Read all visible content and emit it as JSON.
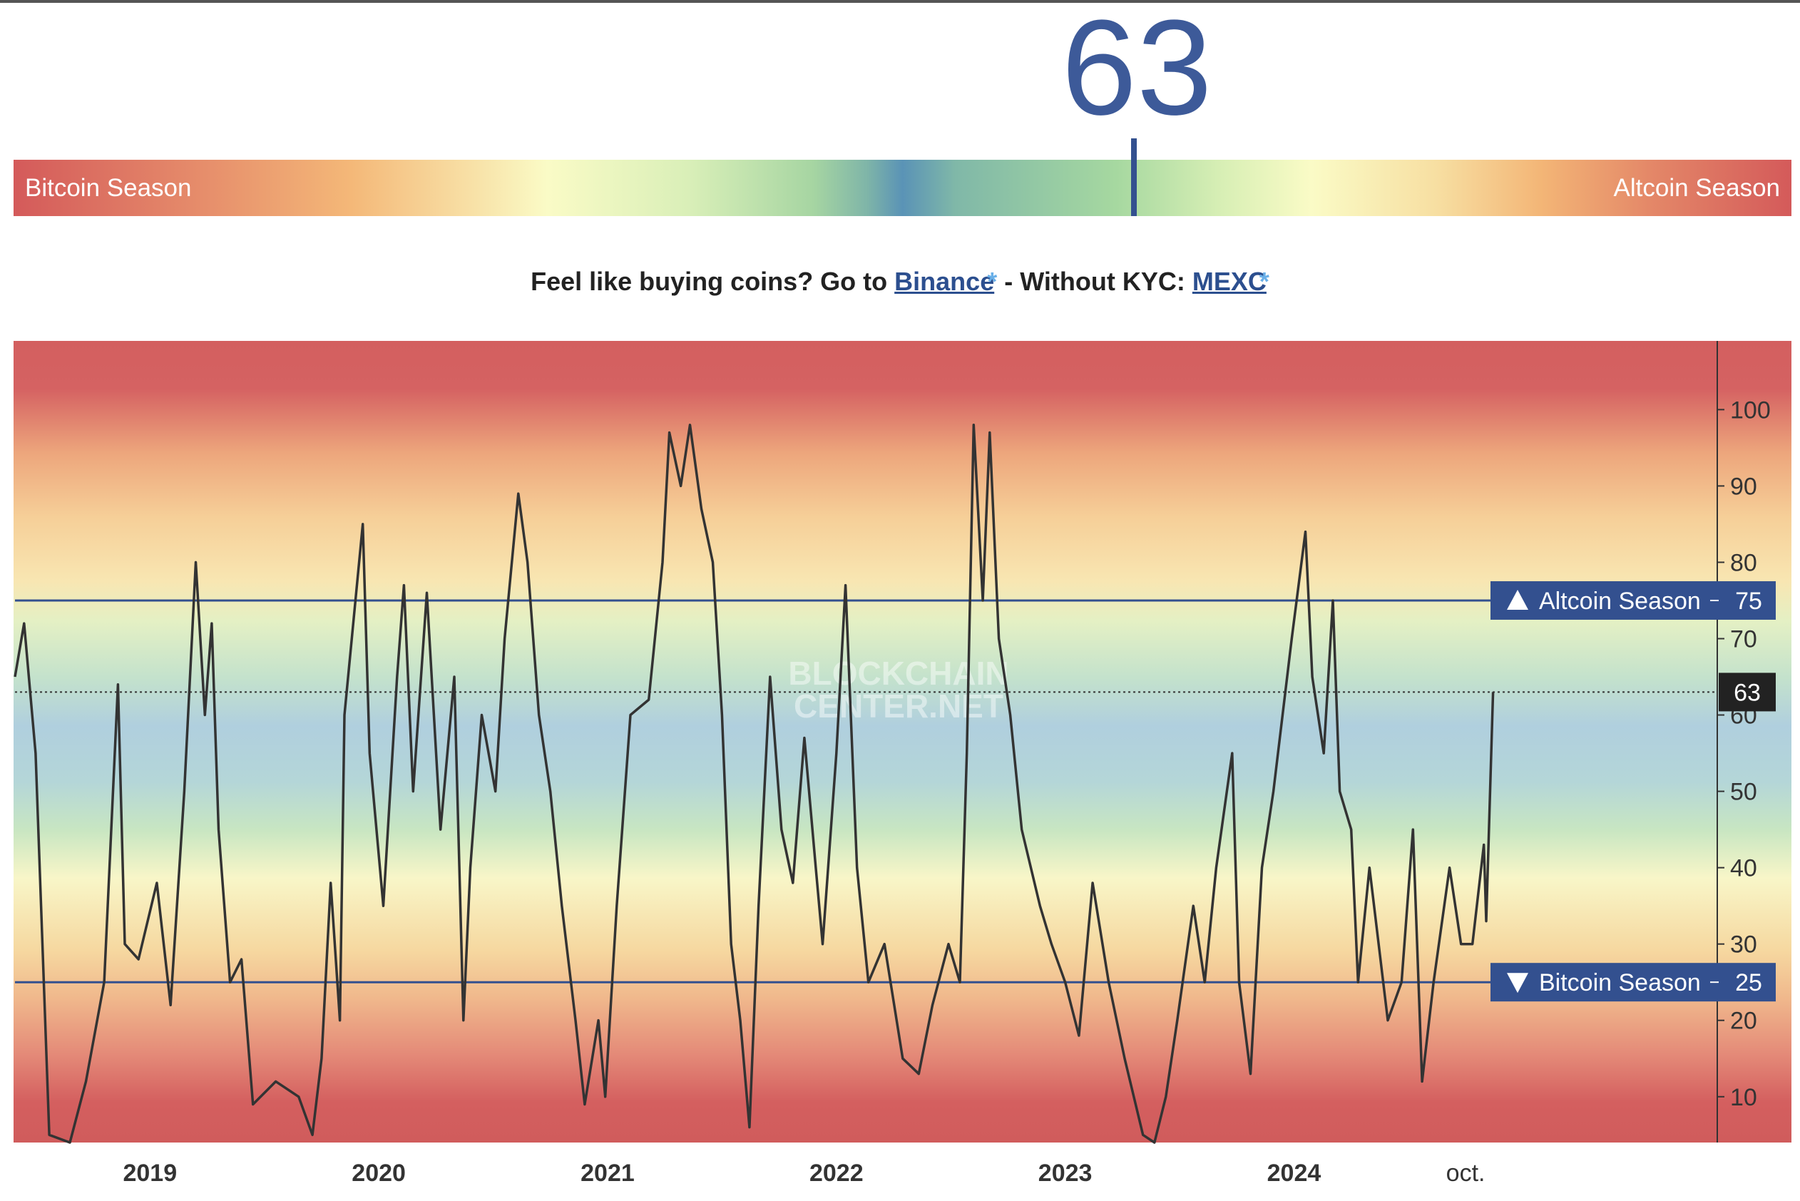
{
  "index": {
    "value": 63,
    "lim": [
      0,
      100
    ],
    "left_label": "Bitcoin Season",
    "right_label": "Altcoin Season"
  },
  "promo": {
    "prefix": "Feel like buying coins? Go to",
    "link1": "Binance",
    "star1": "*",
    "middle": "- Without KYC:",
    "link2": "MEXC",
    "star2": "*"
  },
  "chart_data": {
    "type": "line",
    "watermark": [
      "BLOCKCHAIN",
      "CENTER.NET"
    ],
    "x": [
      2018.41,
      2018.45,
      2018.5,
      2018.53,
      2018.56,
      2018.65,
      2018.72,
      2018.8,
      2018.86,
      2018.89,
      2018.95,
      2019.03,
      2019.09,
      2019.15,
      2019.2,
      2019.24,
      2019.27,
      2019.3,
      2019.35,
      2019.4,
      2019.45,
      2019.55,
      2019.65,
      2019.71,
      2019.75,
      2019.79,
      2019.83,
      2019.85,
      2019.93,
      2019.96,
      2020.02,
      2020.08,
      2020.11,
      2020.15,
      2020.21,
      2020.27,
      2020.33,
      2020.37,
      2020.4,
      2020.45,
      2020.51,
      2020.55,
      2020.61,
      2020.65,
      2020.7,
      2020.75,
      2020.8,
      2020.86,
      2020.9,
      2020.96,
      2020.99,
      2021.04,
      2021.1,
      2021.18,
      2021.24,
      2021.27,
      2021.32,
      2021.36,
      2021.41,
      2021.46,
      2021.5,
      2021.54,
      2021.58,
      2021.62,
      2021.66,
      2021.71,
      2021.76,
      2021.81,
      2021.86,
      2021.91,
      2021.94,
      2022.0,
      2022.04,
      2022.09,
      2022.14,
      2022.21,
      2022.29,
      2022.36,
      2022.42,
      2022.49,
      2022.54,
      2022.57,
      2022.6,
      2022.64,
      2022.67,
      2022.71,
      2022.76,
      2022.81,
      2022.89,
      2022.94,
      2023.0,
      2023.06,
      2023.12,
      2023.19,
      2023.26,
      2023.34,
      2023.39,
      2023.44,
      2023.49,
      2023.56,
      2023.61,
      2023.66,
      2023.73,
      2023.76,
      2023.81,
      2023.86,
      2023.91,
      2023.99,
      2024.05,
      2024.08,
      2024.13,
      2024.17,
      2024.2,
      2024.25,
      2024.28,
      2024.33,
      2024.41,
      2024.47,
      2024.52,
      2024.56,
      2024.61,
      2024.68,
      2024.73,
      2024.78,
      2024.83,
      2024.84,
      2024.87
    ],
    "series": [
      {
        "color": "#333333",
        "values": [
          65,
          72,
          55,
          30,
          5,
          4,
          12,
          25,
          64,
          30,
          28,
          38,
          22,
          50,
          80,
          60,
          72,
          45,
          25,
          28,
          9,
          12,
          10,
          5,
          15,
          38,
          20,
          60,
          85,
          55,
          35,
          65,
          77,
          50,
          76,
          45,
          65,
          20,
          40,
          60,
          50,
          70,
          89,
          80,
          60,
          50,
          35,
          20,
          9,
          20,
          10,
          35,
          60,
          62,
          80,
          97,
          90,
          98,
          87,
          80,
          60,
          30,
          20,
          6,
          35,
          65,
          45,
          38,
          57,
          40,
          30,
          55,
          77,
          40,
          25,
          30,
          15,
          13,
          22,
          30,
          25,
          55,
          98,
          75,
          97,
          70,
          60,
          45,
          35,
          30,
          25,
          18,
          38,
          25,
          15,
          5,
          4,
          10,
          20,
          35,
          25,
          40,
          55,
          25,
          13,
          40,
          50,
          70,
          84,
          65,
          55,
          75,
          50,
          45,
          25,
          40,
          20,
          25,
          45,
          12,
          25,
          40,
          30,
          30,
          43,
          33,
          63
        ]
      }
    ],
    "xlim": [
      2018.41,
      2025.85
    ],
    "xticks": [
      2019,
      2020,
      2021,
      2022,
      2023,
      2024,
      {
        "value": 2024.75,
        "label": "oct."
      }
    ],
    "ylim": [
      4,
      109
    ],
    "yticks": [
      10,
      20,
      30,
      40,
      50,
      60,
      70,
      80,
      90,
      100
    ],
    "thresholds": [
      {
        "value": 75,
        "label": "Altcoin Season"
      },
      {
        "value": 25,
        "label": "Bitcoin Season"
      }
    ],
    "current": 63
  }
}
